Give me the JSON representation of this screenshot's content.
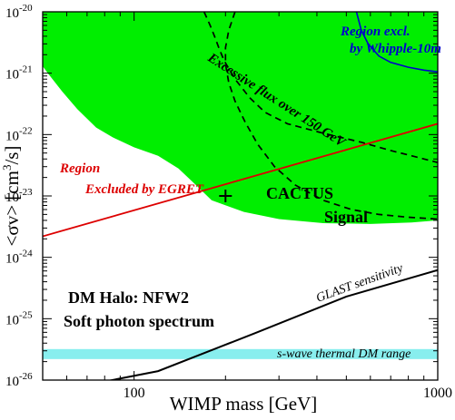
{
  "chart_data": {
    "type": "line",
    "title": "",
    "xlabel": "WIMP mass  [GeV]",
    "ylabel_main": "<σv>",
    "ylabel_unit_pre": "[cm",
    "ylabel_unit_sup": "3",
    "ylabel_unit_post": "/s]",
    "xscale": "log",
    "yscale": "log",
    "xlim": [
      50,
      1000
    ],
    "ylim": [
      1e-26,
      1e-20
    ],
    "x_ticks": [
      {
        "value": 100,
        "label": "100"
      },
      {
        "value": 1000,
        "label": "1000"
      }
    ],
    "y_ticks": [
      {
        "value": 1e-26,
        "base": "10",
        "exp": "-26"
      },
      {
        "value": 1e-25,
        "base": "10",
        "exp": "-25"
      },
      {
        "value": 1e-24,
        "base": "10",
        "exp": "-24"
      },
      {
        "value": 1e-23,
        "base": "10",
        "exp": "-23"
      },
      {
        "value": 1e-22,
        "base": "10",
        "exp": "-22"
      },
      {
        "value": 1e-21,
        "base": "10",
        "exp": "-21"
      },
      {
        "value": 1e-20,
        "base": "10",
        "exp": "-20"
      }
    ],
    "colors": {
      "signal_band": "#00ee00",
      "thermal_band": "#88eeee",
      "egret": "#dd0000",
      "whipple": "#0000cc",
      "cactus_contour": "#000000",
      "glast": "#000000",
      "egret_text": "#dd0000",
      "whipple_text": "#0000cc"
    },
    "signal_band": {
      "upper": [
        [
          50,
          1e-20
        ],
        [
          1000,
          1e-20
        ]
      ],
      "lower": [
        [
          1000,
          4e-24
        ],
        [
          820,
          3.7e-24
        ],
        [
          600,
          3.5e-24
        ],
        [
          420,
          3.6e-24
        ],
        [
          300,
          4.2e-24
        ],
        [
          230,
          5.5e-24
        ],
        [
          180,
          8.5e-24
        ],
        [
          160,
          1.5e-23
        ],
        [
          140,
          2.8e-23
        ],
        [
          120,
          4.5e-23
        ],
        [
          100,
          6.2e-23
        ],
        [
          85,
          9e-23
        ],
        [
          75,
          1.3e-22
        ],
        [
          65,
          2.6e-22
        ],
        [
          58,
          5e-22
        ],
        [
          52,
          1e-21
        ],
        [
          50,
          1.3e-21
        ]
      ]
    },
    "thermal_band": {
      "ymin": 2.2e-26,
      "ymax": 3.2e-26
    },
    "egret": [
      [
        50,
        2.2e-24
      ],
      [
        1000,
        1.5e-22
      ]
    ],
    "glast": [
      [
        50,
        6e-27
      ],
      [
        120,
        1.4e-26
      ],
      [
        250,
        5.8e-26
      ],
      [
        500,
        2.3e-25
      ],
      [
        1000,
        6.2e-25
      ]
    ],
    "whipple": [
      [
        540,
        1e-20
      ],
      [
        560,
        5e-21
      ],
      [
        590,
        3e-21
      ],
      [
        640,
        1.9e-21
      ],
      [
        700,
        1.5e-21
      ],
      [
        800,
        1.25e-21
      ],
      [
        900,
        1.12e-21
      ],
      [
        1000,
        1.05e-21
      ]
    ],
    "cactus_outer": [
      [
        170,
        1e-20
      ],
      [
        178,
        6e-21
      ],
      [
        184,
        4e-21
      ],
      [
        190,
        2.6e-21
      ],
      [
        198,
        1.6e-21
      ],
      [
        215,
        8e-22
      ],
      [
        240,
        4e-22
      ],
      [
        270,
        2.3e-22
      ],
      [
        320,
        1.5e-22
      ],
      [
        420,
        1.05e-22
      ],
      [
        560,
        7.5e-23
      ],
      [
        700,
        5.5e-23
      ],
      [
        850,
        4.3e-23
      ],
      [
        1000,
        3.5e-23
      ]
    ],
    "cactus_inner": [
      [
        215,
        1e-20
      ],
      [
        205,
        5e-21
      ],
      [
        200,
        2.6e-21
      ],
      [
        200,
        1.4e-21
      ],
      [
        205,
        7e-22
      ],
      [
        215,
        3.5e-22
      ],
      [
        232,
        1.6e-22
      ],
      [
        255,
        7e-23
      ],
      [
        290,
        3e-23
      ],
      [
        340,
        1.5e-23
      ],
      [
        420,
        8.5e-24
      ],
      [
        520,
        6e-24
      ],
      [
        640,
        5e-24
      ],
      [
        800,
        4.5e-24
      ],
      [
        1000,
        4.2e-24
      ]
    ],
    "cactus_marker": {
      "x": 200,
      "y": 1e-23
    },
    "annotations": {
      "whipple_line1": "Region excl.",
      "whipple_line2": "by Whipple-10m",
      "excessive_flux": "Excessive flux over 150 GeV",
      "egret_line1": "Region",
      "egret_line2": "Excluded by EGRET",
      "cactus": "CACTUS",
      "signal": "Signal",
      "glast": "GLAST sensitivity",
      "halo_line1": "DM Halo: NFW2",
      "halo_line2": "Soft photon spectrum",
      "thermal": "s-wave thermal DM range"
    }
  }
}
